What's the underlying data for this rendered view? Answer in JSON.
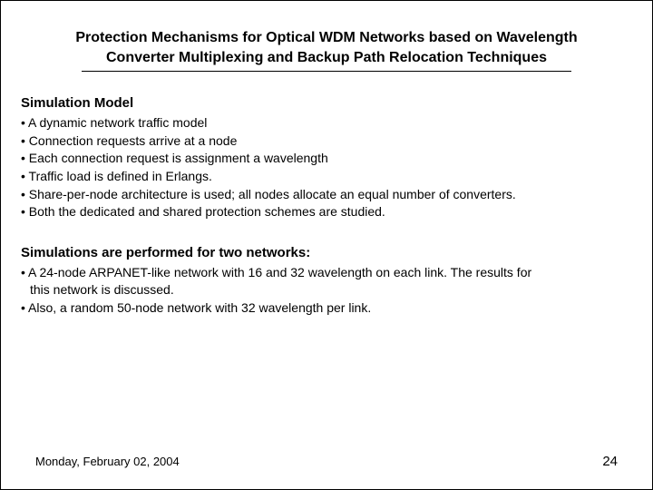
{
  "title_line1": "Protection Mechanisms for Optical WDM Networks based on Wavelength",
  "title_line2": "Converter Multiplexing and Backup Path Relocation Techniques",
  "section1": {
    "heading": "Simulation Model",
    "bullets": [
      "• A dynamic network traffic model",
      "• Connection requests arrive at a node",
      "• Each connection request is assignment a wavelength",
      "• Traffic load is defined in Erlangs.",
      "• Share-per-node architecture is used; all nodes allocate an equal number of converters.",
      "• Both the dedicated and shared protection schemes are studied."
    ]
  },
  "section2": {
    "heading": "Simulations are performed for two networks:",
    "lines": [
      {
        "text": "• A 24-node ARPANET-like network with 16 and 32 wavelength on each link. The results for",
        "indent": false
      },
      {
        "text": "this network is discussed.",
        "indent": true
      },
      {
        "text": "• Also, a random 50-node network with 32 wavelength per link.",
        "indent": false
      }
    ]
  },
  "footer": {
    "date": "Monday, February 02, 2004",
    "page": "24"
  },
  "colors": {
    "text": "#000000",
    "background": "#ffffff",
    "border": "#000000"
  },
  "fonts": {
    "family": "Arial",
    "title_size_pt": 16,
    "heading_size_pt": 15,
    "body_size_pt": 14,
    "footer_size_pt": 13
  }
}
